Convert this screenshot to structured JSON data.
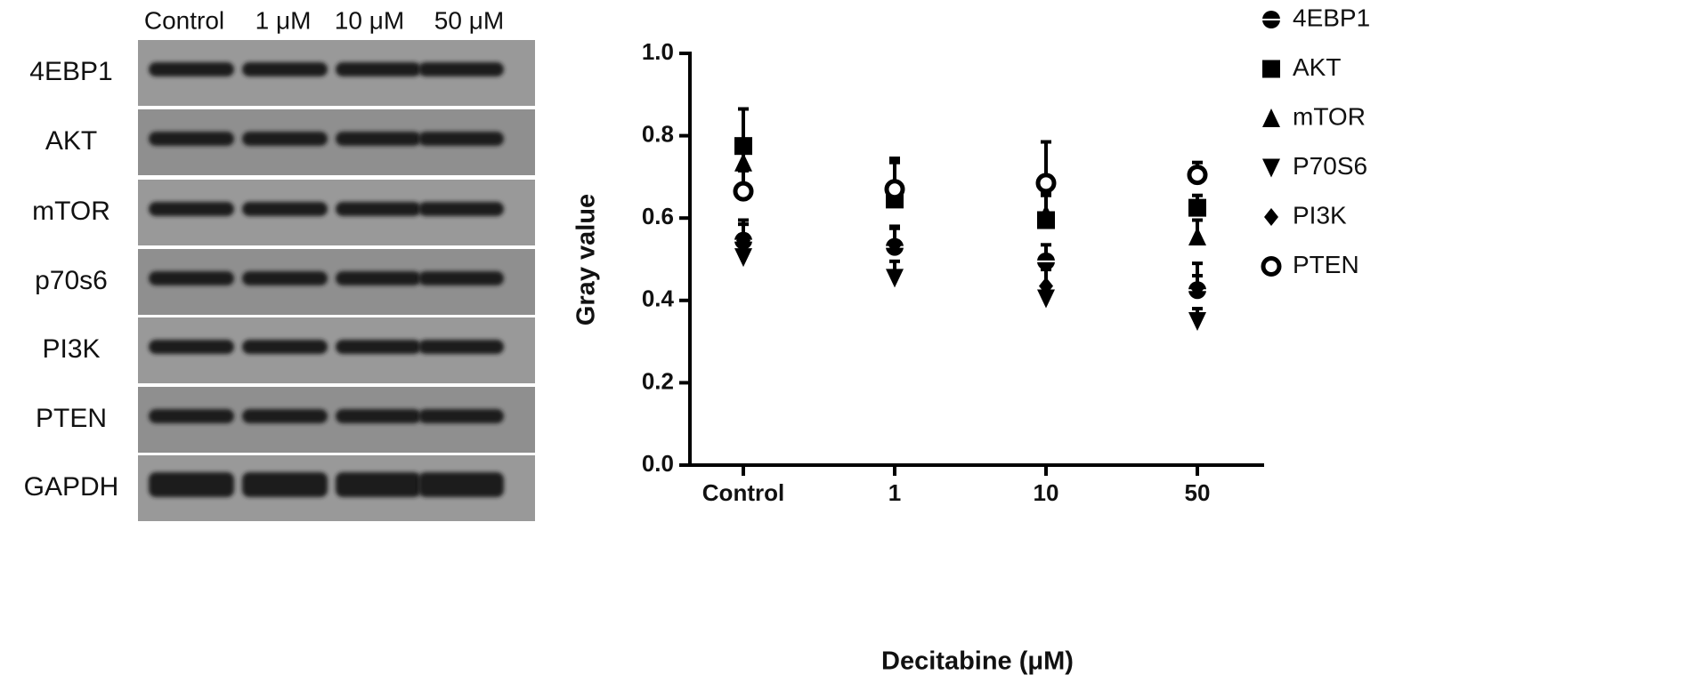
{
  "blot": {
    "lanes": [
      "Control",
      "1 μM",
      "10 μM",
      "50 μM"
    ],
    "rows": [
      "4EBP1",
      "AKT",
      "mTOR",
      "p70s6",
      "PI3K",
      "PTEN",
      "GAPDH"
    ]
  },
  "chart_data": {
    "type": "scatter",
    "xlabel": "Decitabine (μM)",
    "ylabel": "Gray value",
    "categories": [
      "Control",
      "1",
      "10",
      "50"
    ],
    "ylim": [
      0,
      1.0
    ],
    "yticks": [
      {
        "value": 0,
        "label": "0.0"
      },
      0.2,
      0.4,
      0.6,
      0.8,
      {
        "value": 1.0,
        "label": "1.0"
      }
    ],
    "series": [
      {
        "name": "4EBP1",
        "marker": "half-circle",
        "color": "#000000",
        "values": [
          0.545,
          0.53,
          0.495,
          0.425
        ],
        "errors": [
          0.05,
          0.05,
          0.04,
          0.065
        ]
      },
      {
        "name": "AKT",
        "marker": "square",
        "color": "#000000",
        "values": [
          0.775,
          0.645,
          0.595,
          0.625
        ],
        "errors": [
          0.09,
          0.1,
          0.06,
          0.03
        ]
      },
      {
        "name": "mTOR",
        "marker": "triangle-up",
        "color": "#000000",
        "values": [
          0.735,
          0.665,
          0.61,
          0.555
        ],
        "errors": [
          0.03,
          0.07,
          0.05,
          0.04
        ]
      },
      {
        "name": "P70S6",
        "marker": "triangle-down",
        "color": "#000000",
        "values": [
          0.505,
          0.455,
          0.405,
          0.35
        ],
        "errors": [
          0.03,
          0.04,
          0.03,
          0.03
        ]
      },
      {
        "name": "PI3K",
        "marker": "diamond",
        "color": "#000000",
        "values": [
          0.545,
          0.535,
          0.435,
          0.43
        ],
        "errors": [
          0.04,
          0.04,
          0.04,
          0.03
        ]
      },
      {
        "name": "PTEN",
        "marker": "open-circle",
        "color": "#000000",
        "values": [
          0.665,
          0.67,
          0.685,
          0.705
        ],
        "errors": [
          0.05,
          0.07,
          0.1,
          0.03
        ]
      }
    ]
  }
}
